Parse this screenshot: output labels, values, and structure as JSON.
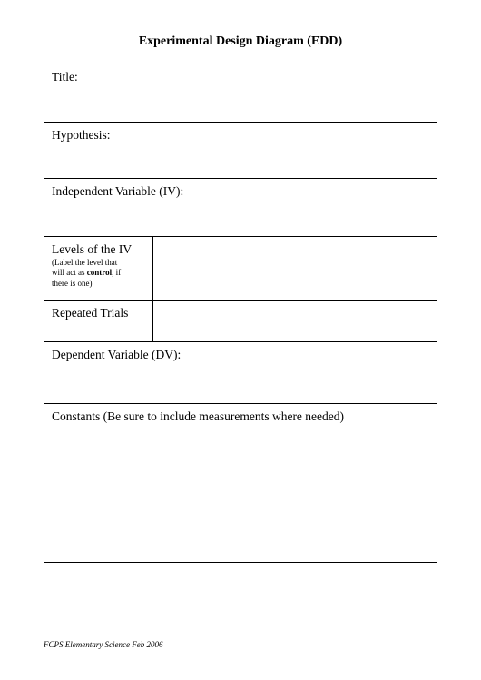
{
  "document": {
    "header": "Experimental Design Diagram (EDD)",
    "footer": "FCPS Elementary Science   Feb 2006"
  },
  "rows": {
    "title_label": "Title:",
    "hypothesis_label": "Hypothesis:",
    "iv_label": "Independent Variable (IV):",
    "levels_label": "Levels of the IV",
    "levels_sub_line1": "(Label the level that",
    "levels_sub_prefix": "will act as ",
    "levels_sub_bold": "control",
    "levels_sub_suffix": ", if",
    "levels_sub_line3": "there is one)",
    "trials_label": "Repeated Trials",
    "dv_label": "Dependent Variable (DV):",
    "constants_label": "Constants (Be sure to include measurements where needed)"
  },
  "colors": {
    "background": "#ffffff",
    "text": "#000000",
    "border": "#000000"
  },
  "typography": {
    "font_family": "Times New Roman",
    "header_fontsize": 14,
    "label_fontsize": 13.5,
    "sub_fontsize": 9,
    "footer_fontsize": 9
  }
}
